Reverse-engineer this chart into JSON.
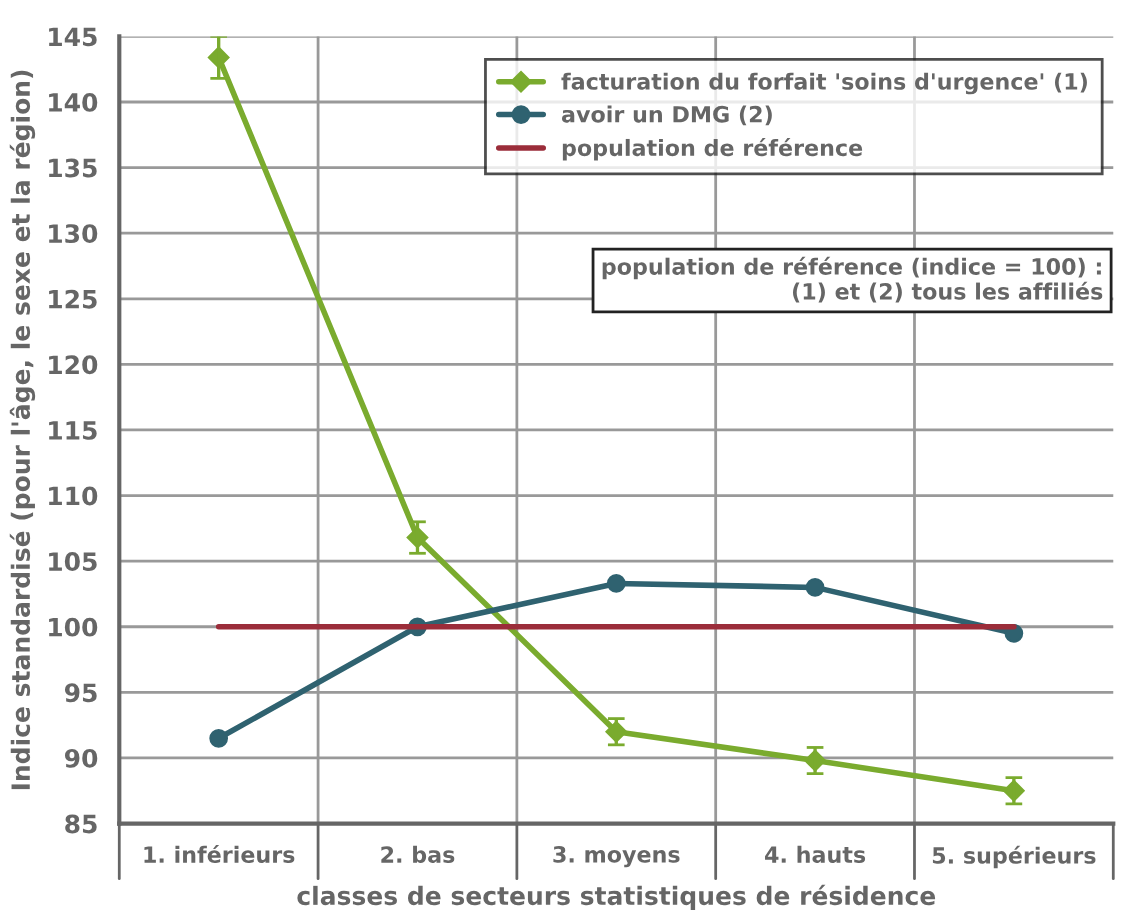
{
  "chart_data": {
    "type": "line",
    "xlabel": "classes de secteurs statistiques de résidence",
    "ylabel": "Indice standardisé (pour l'âge, le sexe et la région)",
    "categories": [
      "1. inférieurs",
      "2. bas",
      "3. moyens",
      "4. hauts",
      "5. supérieurs"
    ],
    "series": [
      {
        "name": "facturation du forfait 'soins d'urgence' (1)",
        "color": "#7aab2e",
        "marker": "diamond",
        "values": [
          143.4,
          106.8,
          92.0,
          89.8,
          87.5
        ],
        "errors": [
          1.6,
          1.2,
          1.0,
          1.0,
          1.0
        ]
      },
      {
        "name": "avoir un DMG (2)",
        "color": "#2f6270",
        "marker": "circle",
        "values": [
          91.5,
          100.0,
          103.3,
          103.0,
          99.5
        ]
      },
      {
        "name": "population de référence",
        "color": "#9b2d3a",
        "marker": "none",
        "values": [
          100,
          100,
          100,
          100,
          100
        ]
      }
    ],
    "annotations": [
      "population de référence (indice = 100) :\n(1) et (2) tous les affiliés"
    ],
    "ylim": [
      85,
      145
    ],
    "yticks": [
      85,
      90,
      95,
      100,
      105,
      110,
      115,
      120,
      125,
      130,
      135,
      140,
      145
    ],
    "grid": true,
    "legend": "top right",
    "line_style": "solid"
  }
}
